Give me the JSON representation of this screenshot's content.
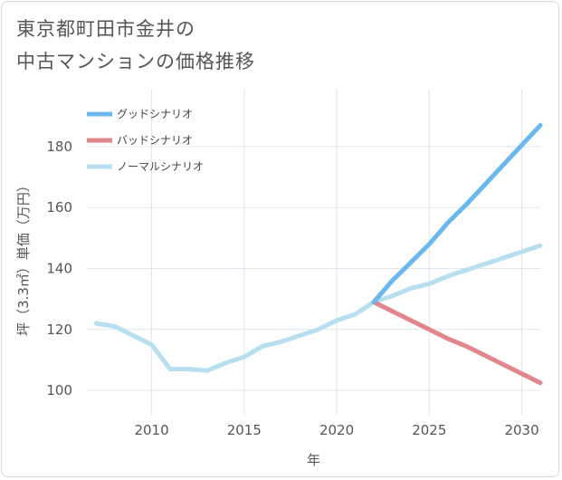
{
  "title": {
    "line1": "東京都町田市金井の",
    "line2": "中古マンションの価格推移"
  },
  "chart_data": {
    "type": "line",
    "title": "東京都町田市金井の中古マンションの価格推移",
    "xlabel": "年",
    "ylabel": "坪（3.3㎡）単価（万円）",
    "xlim": [
      2006.5,
      2031
    ],
    "ylim": [
      92,
      199
    ],
    "xticks": [
      2010,
      2015,
      2020,
      2025,
      2030
    ],
    "yticks": [
      100,
      120,
      140,
      160,
      180
    ],
    "grid": true,
    "legend_position": "top-left",
    "series": [
      {
        "name": "グッドシナリオ",
        "color": "#6bb8ee",
        "x": [
          2022,
          2023,
          2024,
          2025,
          2026,
          2027,
          2028,
          2029,
          2030,
          2031
        ],
        "y": [
          129,
          136,
          142,
          148,
          155,
          161,
          167.5,
          174,
          180.5,
          187
        ]
      },
      {
        "name": "バッドシナリオ",
        "color": "#e0868c",
        "x": [
          2022,
          2023,
          2024,
          2025,
          2026,
          2027,
          2028,
          2029,
          2030,
          2031
        ],
        "y": [
          129,
          126,
          123,
          120,
          117,
          114.5,
          111.5,
          108.5,
          105.5,
          102.5
        ]
      },
      {
        "name": "ノーマルシナリオ",
        "color": "#b8dff0",
        "x": [
          2007,
          2008,
          2009,
          2010,
          2011,
          2012,
          2013,
          2014,
          2015,
          2016,
          2017,
          2018,
          2019,
          2020,
          2021,
          2022,
          2023,
          2024,
          2025,
          2026,
          2027,
          2028,
          2029,
          2030,
          2031
        ],
        "y": [
          122,
          121,
          118,
          115,
          107,
          107,
          106.5,
          109,
          111,
          114.5,
          116,
          118,
          120,
          123,
          125,
          129,
          131,
          133.5,
          135,
          137.5,
          139.5,
          141.5,
          143.5,
          145.5,
          147.5
        ]
      }
    ]
  }
}
